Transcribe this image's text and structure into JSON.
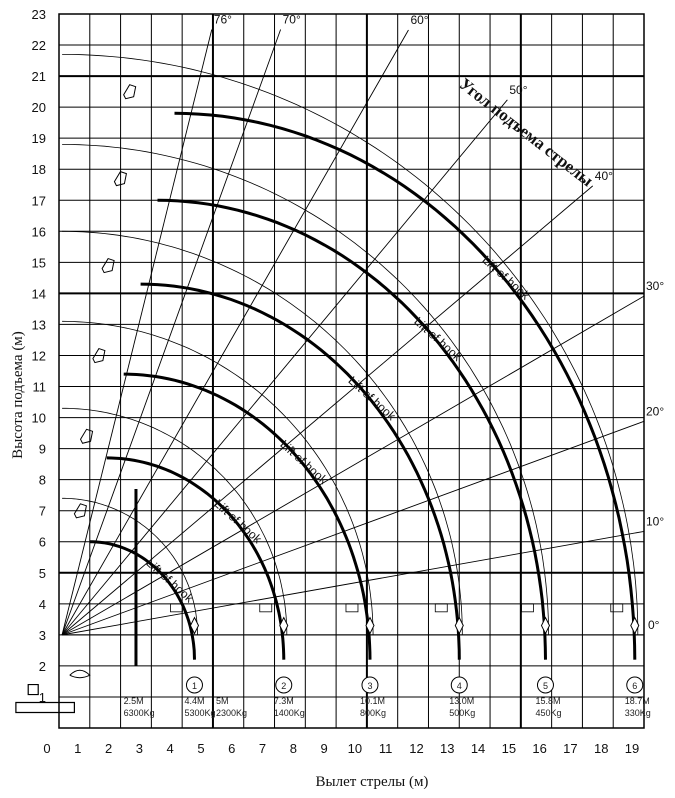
{
  "chart_data": {
    "type": "line",
    "title": "",
    "xlabel": "Вылет стрелы (м)",
    "ylabel": "Высота подъема (м)",
    "xlim": [
      0,
      19
    ],
    "ylim": [
      0,
      23
    ],
    "x_ticks": [
      "0",
      "1",
      "2",
      "3",
      "4",
      "5",
      "6",
      "7",
      "8",
      "9",
      "10",
      "11",
      "12",
      "13",
      "14",
      "15",
      "16",
      "17",
      "18",
      "19"
    ],
    "y_ticks": [
      "1",
      "2",
      "3",
      "4",
      "5",
      "6",
      "7",
      "8",
      "9",
      "10",
      "11",
      "12",
      "13",
      "14",
      "15",
      "16",
      "17",
      "18",
      "19",
      "20",
      "21",
      "22",
      "23"
    ],
    "pivot": {
      "x": 0.1,
      "y": 3.0
    },
    "angle_title": "Угол подъема стрелы",
    "angle_lines": [
      {
        "label": "76°",
        "deg": 76
      },
      {
        "label": "70°",
        "deg": 70
      },
      {
        "label": "60°",
        "deg": 60
      },
      {
        "label": "50°",
        "deg": 50
      },
      {
        "label": "40°",
        "deg": 40
      },
      {
        "label": "30°",
        "deg": 30
      },
      {
        "label": "20°",
        "deg": 20
      },
      {
        "label": "10°",
        "deg": 10
      },
      {
        "label": "0°",
        "deg": 0
      }
    ],
    "arc_label": "Lift of hook",
    "series": [
      {
        "name": "1",
        "radius": 4.4,
        "reach": 4.4,
        "max_height": 6.0,
        "spec": [
          "4.4M",
          "5300Kg"
        ]
      },
      {
        "name": "2",
        "radius": 7.3,
        "reach": 7.3,
        "max_height": 8.7,
        "spec": [
          "7.3M",
          "1400Kg"
        ]
      },
      {
        "name": "3",
        "radius": 10.1,
        "reach": 10.1,
        "max_height": 11.4,
        "spec": [
          "10.1M",
          "800Kg"
        ]
      },
      {
        "name": "4",
        "radius": 13.0,
        "reach": 13.0,
        "max_height": 14.3,
        "spec": [
          "13.0M",
          "500Kg"
        ]
      },
      {
        "name": "5",
        "radius": 15.8,
        "reach": 15.8,
        "max_height": 17.0,
        "spec": [
          "15.8M",
          "450Kg"
        ]
      },
      {
        "name": "6",
        "radius": 18.7,
        "reach": 18.7,
        "max_height": 19.8,
        "spec": [
          "18.7M",
          "330Kg"
        ]
      }
    ],
    "extra_specs": [
      {
        "x": 2.1,
        "lines": [
          "2.5M",
          "6300Kg"
        ]
      },
      {
        "x": 5.1,
        "lines": [
          "5M",
          "2300Kg"
        ]
      }
    ],
    "marker_line": {
      "x": 2.5,
      "y_from": 2.0,
      "y_to": 7.7
    }
  }
}
